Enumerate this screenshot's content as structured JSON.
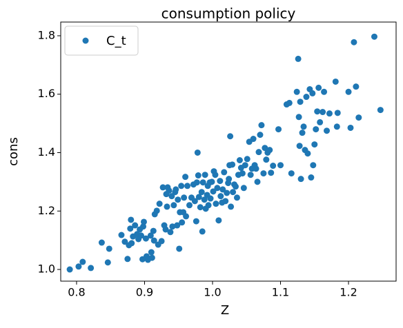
{
  "chart_data": {
    "type": "scatter",
    "title": "consumption policy",
    "x_label": "Z",
    "y_label": "cons",
    "xlim": [
      0.7767,
      1.27
    ],
    "ylim": [
      0.96,
      1.847
    ],
    "xticks": [
      0.8,
      0.9,
      {
        "value": 1.0,
        "label": "1.0"
      },
      1.1,
      1.2
    ],
    "yticks": [
      {
        "value": 1.0,
        "label": "1.0"
      },
      1.2,
      1.4,
      1.6,
      1.8
    ],
    "legend": "upper left",
    "x": [
      0.79,
      0.803,
      0.809,
      0.821,
      0.837,
      0.846,
      0.848,
      0.866,
      0.871,
      0.875,
      0.877,
      0.879,
      0.88,
      0.881,
      0.883,
      0.886,
      0.889,
      0.891,
      0.893,
      0.895,
      0.897,
      0.898,
      0.899,
      0.902,
      0.903,
      0.905,
      0.909,
      0.91,
      0.911,
      0.913,
      0.914,
      0.915,
      0.918,
      0.92,
      0.922,
      0.925,
      0.927,
      0.929,
      0.931,
      0.932,
      0.933,
      0.934,
      0.936,
      0.938,
      0.94,
      0.941,
      0.943,
      0.945,
      0.946,
      0.948,
      0.949,
      0.951,
      0.952,
      0.954,
      0.955,
      0.957,
      0.958,
      0.96,
      0.961,
      0.963,
      0.966,
      0.969,
      0.972,
      0.974,
      0.976,
      0.977,
      0.978,
      0.979,
      0.98,
      0.982,
      0.984,
      0.985,
      0.986,
      0.988,
      0.989,
      0.99,
      0.992,
      0.993,
      0.994,
      0.996,
      0.997,
      0.999,
      1.001,
      1.002,
      1.004,
      1.005,
      1.007,
      1.009,
      1.011,
      1.012,
      1.014,
      1.015,
      1.017,
      1.019,
      1.021,
      1.023,
      1.024,
      1.025,
      1.026,
      1.027,
      1.029,
      1.03,
      1.032,
      1.034,
      1.036,
      1.038,
      1.04,
      1.042,
      1.044,
      1.046,
      1.048,
      1.051,
      1.054,
      1.056,
      1.058,
      1.06,
      1.062,
      1.064,
      1.066,
      1.068,
      1.07,
      1.072,
      1.075,
      1.077,
      1.079,
      1.081,
      1.084,
      1.086,
      1.089,
      1.097,
      1.1,
      1.109,
      1.113,
      1.116,
      1.124,
      1.126,
      1.127,
      1.128,
      1.129,
      1.13,
      1.132,
      1.134,
      1.136,
      1.138,
      1.14,
      1.143,
      1.145,
      1.147,
      1.148,
      1.15,
      1.152,
      1.154,
      1.156,
      1.158,
      1.162,
      1.164,
      1.168,
      1.172,
      1.181,
      1.184,
      1.183,
      1.2,
      1.203,
      1.208,
      1.211,
      1.215,
      1.238,
      1.247
    ],
    "series": [
      {
        "name": "C_t",
        "color": "#1f77b4",
        "values": [
          1.0,
          1.01,
          1.026,
          1.005,
          1.092,
          1.024,
          1.071,
          1.118,
          1.095,
          1.036,
          1.083,
          1.14,
          1.17,
          1.09,
          1.113,
          1.151,
          1.121,
          1.104,
          1.137,
          1.116,
          1.035,
          1.147,
          1.163,
          1.106,
          1.045,
          1.033,
          1.116,
          1.059,
          1.04,
          1.132,
          1.099,
          1.189,
          1.201,
          1.085,
          1.225,
          1.097,
          1.281,
          1.151,
          1.137,
          1.258,
          1.215,
          1.281,
          1.27,
          1.128,
          1.251,
          1.147,
          1.22,
          1.265,
          1.274,
          1.151,
          1.239,
          1.071,
          1.196,
          1.286,
          1.161,
          1.196,
          1.246,
          1.317,
          1.182,
          1.286,
          1.22,
          1.246,
          1.291,
          1.234,
          1.165,
          1.298,
          1.4,
          1.322,
          1.248,
          1.213,
          1.265,
          1.13,
          1.298,
          1.239,
          1.324,
          1.208,
          1.255,
          1.286,
          1.22,
          1.298,
          1.243,
          1.3,
          1.267,
          1.336,
          1.324,
          1.225,
          1.279,
          1.168,
          1.303,
          1.251,
          1.229,
          1.274,
          1.333,
          1.234,
          1.262,
          1.296,
          1.31,
          1.357,
          1.456,
          1.215,
          1.359,
          1.265,
          1.291,
          1.284,
          1.246,
          1.324,
          1.374,
          1.348,
          1.329,
          1.279,
          1.357,
          1.378,
          1.437,
          1.324,
          1.345,
          1.447,
          1.357,
          1.345,
          1.3,
          1.402,
          1.461,
          1.494,
          1.329,
          1.416,
          1.376,
          1.4,
          1.409,
          1.331,
          1.355,
          1.48,
          1.357,
          1.565,
          1.57,
          1.329,
          1.608,
          1.721,
          1.522,
          1.423,
          1.574,
          1.31,
          1.468,
          1.489,
          1.409,
          1.591,
          1.397,
          1.617,
          1.315,
          1.603,
          1.357,
          1.428,
          1.48,
          1.541,
          1.622,
          1.504,
          1.539,
          1.608,
          1.475,
          1.534,
          1.643,
          1.536,
          1.489,
          1.608,
          1.485,
          1.778,
          1.626,
          1.52,
          1.797,
          1.546
        ]
      }
    ]
  }
}
